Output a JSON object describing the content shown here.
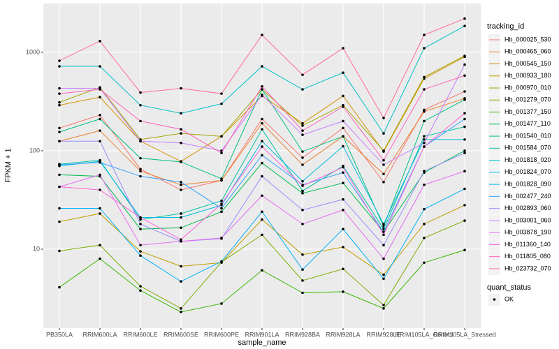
{
  "chart_data": {
    "type": "line",
    "log": true,
    "grid": true,
    "legend": "right",
    "xlabel": "sample_name",
    "ylabel": "FPKM + 1",
    "legend_title": "tracking_id",
    "shape_legend_title": "quant_status",
    "shape_legend_entries": [
      "OK"
    ],
    "categories": [
      "PB350LA",
      "RRIM600LA",
      "RRIM600LE",
      "RRIM600SE",
      "RRIM600PE",
      "RRIM901LA",
      "RRIM928BA",
      "RRIM928LA",
      "RRIM928LE",
      "RRIM105LA_Control",
      "RRIM105LA_Stressed"
    ],
    "ylim": [
      1.58,
      3130
    ],
    "yticks": [
      10,
      100,
      1000
    ],
    "series": [
      {
        "name": "Hb_000025_530",
        "color": "#F8766D",
        "values": [
          170,
          230,
          65,
          40,
          50,
          210,
          85,
          170,
          48,
          260,
          400
        ]
      },
      {
        "name": "Hb_000465_060",
        "color": "#EA8331",
        "values": [
          125,
          160,
          62,
          45,
          50,
          190,
          72,
          140,
          58,
          250,
          340
        ]
      },
      {
        "name": "Hb_000545_150",
        "color": "#D89000",
        "values": [
          290,
          350,
          125,
          78,
          140,
          360,
          190,
          360,
          98,
          540,
          900
        ]
      },
      {
        "name": "Hb_000933_180",
        "color": "#C09B00",
        "values": [
          19,
          23,
          9.5,
          6.7,
          7.3,
          20,
          8.8,
          10.5,
          5.5,
          18,
          28
        ]
      },
      {
        "name": "Hb_000970_010",
        "color": "#A3A500",
        "values": [
          310,
          440,
          130,
          150,
          140,
          420,
          180,
          290,
          100,
          560,
          920
        ]
      },
      {
        "name": "Hb_001279_070",
        "color": "#7CAE00",
        "values": [
          9.6,
          11,
          4.2,
          2.5,
          7.4,
          14,
          4.8,
          6.3,
          2.7,
          13,
          19.5
        ]
      },
      {
        "name": "Hb_001377_150",
        "color": "#39B600",
        "values": [
          4.1,
          8,
          3.8,
          2.3,
          2.8,
          6.1,
          3.6,
          3.7,
          2.5,
          7.3,
          9.8
        ]
      },
      {
        "name": "Hb_001477_110",
        "color": "#00BB4E",
        "values": [
          57,
          55,
          16,
          16.5,
          24,
          75,
          37,
          47,
          15,
          60,
          100
        ]
      },
      {
        "name": "Hb_001540_010",
        "color": "#00BF7D",
        "values": [
          155,
          210,
          84,
          77,
          52,
          420,
          98,
          140,
          17,
          200,
          330
        ]
      },
      {
        "name": "Hb_001584_070",
        "color": "#00C1A3",
        "values": [
          73,
          80,
          20,
          23,
          31,
          165,
          39,
          70,
          16,
          140,
          175
        ]
      },
      {
        "name": "Hb_001818_020",
        "color": "#00BFC4",
        "values": [
          720,
          720,
          290,
          240,
          300,
          720,
          420,
          620,
          150,
          1100,
          1850
        ]
      },
      {
        "name": "Hb_001824_070",
        "color": "#00BAE0",
        "values": [
          70,
          78,
          21,
          21,
          28,
          125,
          49,
          111,
          18,
          130,
          130
        ]
      },
      {
        "name": "Hb_001828_090",
        "color": "#00B0F6",
        "values": [
          26,
          26,
          8.6,
          4.7,
          7.5,
          24,
          6.2,
          16,
          5,
          25.5,
          41
        ]
      },
      {
        "name": "Hb_002477_240",
        "color": "#35A2FF",
        "values": [
          72,
          76,
          55,
          48,
          26,
          90,
          45,
          60,
          15,
          110,
          210
        ]
      },
      {
        "name": "Hb_002893_060",
        "color": "#9590FF",
        "values": [
          125,
          125,
          18,
          12,
          12.8,
          55,
          25,
          32,
          11,
          62,
          95
        ]
      },
      {
        "name": "Hb_003001_060",
        "color": "#C77CFF",
        "values": [
          430,
          430,
          125,
          120,
          100,
          370,
          145,
          200,
          72,
          120,
          750
        ]
      },
      {
        "name": "Hb_003878_190",
        "color": "#E76BF3",
        "values": [
          43,
          57,
          11,
          12,
          13,
          35,
          18,
          25,
          8,
          45,
          62
        ]
      },
      {
        "name": "Hb_011360_140",
        "color": "#FA62DB",
        "values": [
          43,
          40,
          21,
          12.5,
          29,
          110,
          44,
          68,
          14,
          110,
          240
        ]
      },
      {
        "name": "Hb_011805_080",
        "color": "#FF62BC",
        "values": [
          380,
          420,
          200,
          165,
          95,
          450,
          160,
          280,
          80,
          420,
          580
        ]
      },
      {
        "name": "Hb_023732_070",
        "color": "#FF6C91",
        "values": [
          820,
          1300,
          390,
          430,
          380,
          1500,
          590,
          1100,
          215,
          1500,
          2200
        ]
      }
    ]
  }
}
